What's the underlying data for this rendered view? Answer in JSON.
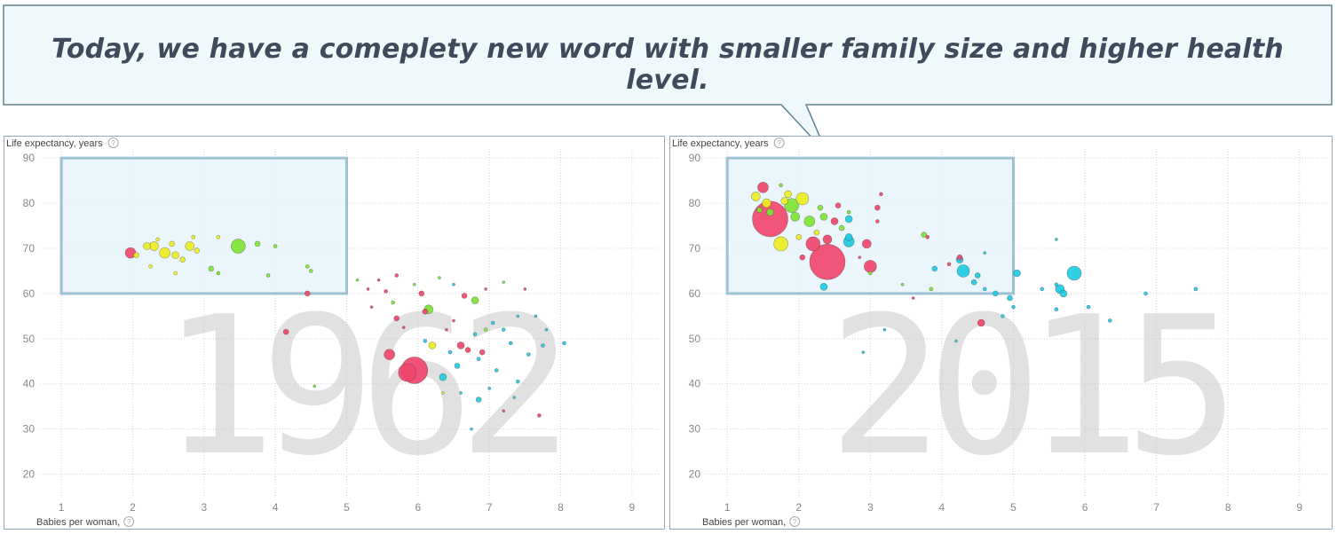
{
  "callout": {
    "text": "Today, we have a comeplety new word with smaller family size and higher health level."
  },
  "colors": {
    "south_asia_red": "#f0456a",
    "east_asia_yellow": "#eded1f",
    "europe_green": "#7ee334",
    "africa_cyan": "#1ecbe1",
    "highlight_fill": "#e6f4fa",
    "highlight_stroke": "#9cc2d4",
    "panel_border": "#8fa9b8"
  },
  "chart_data": [
    {
      "type": "scatter",
      "year_label": "1962",
      "ylabel": "Life expectancy, years",
      "xlabel": "Babies per woman,",
      "xlim": [
        0.7,
        9.4
      ],
      "ylim": [
        15,
        92
      ],
      "xticks": [
        "1",
        "2",
        "3",
        "4",
        "5",
        "6",
        "7",
        "8",
        "9"
      ],
      "yticks": [
        "20",
        "30",
        "40",
        "50",
        "60",
        "70",
        "80",
        "90"
      ],
      "highlight_box": {
        "x": [
          1,
          5
        ],
        "y": [
          60,
          90
        ]
      },
      "points": [
        {
          "x": 5.95,
          "y": 43,
          "r": 15,
          "c": "r"
        },
        {
          "x": 5.85,
          "y": 42.5,
          "r": 10,
          "c": "r"
        },
        {
          "x": 1.97,
          "y": 69,
          "r": 6,
          "c": "r"
        },
        {
          "x": 3.48,
          "y": 70.5,
          "r": 8,
          "c": "g"
        },
        {
          "x": 2.45,
          "y": 69,
          "r": 6,
          "c": "y"
        },
        {
          "x": 2.3,
          "y": 70.5,
          "r": 5,
          "c": "y"
        },
        {
          "x": 2.2,
          "y": 70.5,
          "r": 4,
          "c": "y"
        },
        {
          "x": 2.6,
          "y": 68.5,
          "r": 4,
          "c": "y"
        },
        {
          "x": 2.8,
          "y": 70.5,
          "r": 5,
          "c": "y"
        },
        {
          "x": 2.7,
          "y": 67.5,
          "r": 3,
          "c": "y"
        },
        {
          "x": 2.9,
          "y": 69.5,
          "r": 3,
          "c": "y"
        },
        {
          "x": 2.05,
          "y": 68.5,
          "r": 3,
          "c": "y"
        },
        {
          "x": 2.55,
          "y": 71,
          "r": 3,
          "c": "y"
        },
        {
          "x": 2.35,
          "y": 72,
          "r": 2,
          "c": "y"
        },
        {
          "x": 2.85,
          "y": 72.5,
          "r": 2,
          "c": "y"
        },
        {
          "x": 3.2,
          "y": 72.5,
          "r": 2,
          "c": "y"
        },
        {
          "x": 2.25,
          "y": 66,
          "r": 2,
          "c": "y"
        },
        {
          "x": 2.6,
          "y": 64.5,
          "r": 2,
          "c": "y"
        },
        {
          "x": 3.1,
          "y": 65.5,
          "r": 3,
          "c": "g"
        },
        {
          "x": 3.2,
          "y": 64.5,
          "r": 2,
          "c": "g"
        },
        {
          "x": 3.75,
          "y": 71,
          "r": 3,
          "c": "g"
        },
        {
          "x": 4.0,
          "y": 70.5,
          "r": 2,
          "c": "g"
        },
        {
          "x": 4.45,
          "y": 66,
          "r": 2,
          "c": "g"
        },
        {
          "x": 4.5,
          "y": 65,
          "r": 2,
          "c": "g"
        },
        {
          "x": 3.9,
          "y": 64,
          "r": 2,
          "c": "g"
        },
        {
          "x": 4.45,
          "y": 60,
          "r": 3,
          "c": "r"
        },
        {
          "x": 4.15,
          "y": 51.5,
          "r": 3,
          "c": "r"
        },
        {
          "x": 4.55,
          "y": 39.5,
          "r": 1.5,
          "c": "g"
        },
        {
          "x": 5.6,
          "y": 46.5,
          "r": 6,
          "c": "r"
        },
        {
          "x": 5.7,
          "y": 54.5,
          "r": 3,
          "c": "r"
        },
        {
          "x": 6.15,
          "y": 56.5,
          "r": 5,
          "c": "g"
        },
        {
          "x": 6.1,
          "y": 56,
          "r": 3,
          "c": "r"
        },
        {
          "x": 6.8,
          "y": 58.5,
          "r": 4,
          "c": "g"
        },
        {
          "x": 6.05,
          "y": 60,
          "r": 3,
          "c": "r"
        },
        {
          "x": 6.65,
          "y": 59.5,
          "r": 3,
          "c": "r"
        },
        {
          "x": 6.2,
          "y": 48.5,
          "r": 4,
          "c": "y"
        },
        {
          "x": 6.1,
          "y": 49.5,
          "r": 2,
          "c": "c"
        },
        {
          "x": 6.35,
          "y": 41.5,
          "r": 4,
          "c": "c"
        },
        {
          "x": 6.6,
          "y": 48.5,
          "r": 4,
          "c": "r"
        },
        {
          "x": 6.7,
          "y": 47.5,
          "r": 3,
          "c": "r"
        },
        {
          "x": 6.9,
          "y": 47,
          "r": 3,
          "c": "r"
        },
        {
          "x": 6.85,
          "y": 36.5,
          "r": 3,
          "c": "c"
        },
        {
          "x": 6.55,
          "y": 44,
          "r": 3,
          "c": "c"
        },
        {
          "x": 7.1,
          "y": 43,
          "r": 2,
          "c": "c"
        },
        {
          "x": 7.3,
          "y": 49,
          "r": 2,
          "c": "c"
        },
        {
          "x": 7.55,
          "y": 46.5,
          "r": 2,
          "c": "c"
        },
        {
          "x": 7.75,
          "y": 48.5,
          "r": 2,
          "c": "c"
        },
        {
          "x": 8.05,
          "y": 49,
          "r": 2,
          "c": "c"
        },
        {
          "x": 7.7,
          "y": 33,
          "r": 2,
          "c": "r"
        },
        {
          "x": 6.75,
          "y": 30,
          "r": 1.5,
          "c": "c"
        },
        {
          "x": 5.15,
          "y": 63,
          "r": 1.5,
          "c": "g"
        },
        {
          "x": 5.3,
          "y": 61,
          "r": 1.5,
          "c": "r"
        },
        {
          "x": 5.55,
          "y": 60.5,
          "r": 2,
          "c": "r"
        },
        {
          "x": 5.45,
          "y": 63,
          "r": 1.5,
          "c": "r"
        },
        {
          "x": 5.7,
          "y": 64,
          "r": 2,
          "c": "r"
        },
        {
          "x": 5.95,
          "y": 62,
          "r": 1.5,
          "c": "g"
        },
        {
          "x": 6.3,
          "y": 63.5,
          "r": 1.5,
          "c": "g"
        },
        {
          "x": 6.5,
          "y": 62,
          "r": 1.5,
          "c": "c"
        },
        {
          "x": 6.95,
          "y": 61,
          "r": 1.5,
          "c": "r"
        },
        {
          "x": 7.2,
          "y": 62.5,
          "r": 1.5,
          "c": "g"
        },
        {
          "x": 7.5,
          "y": 61,
          "r": 1.5,
          "c": "r"
        },
        {
          "x": 7.4,
          "y": 55,
          "r": 1.5,
          "c": "c"
        },
        {
          "x": 7.05,
          "y": 53.5,
          "r": 2,
          "c": "c"
        },
        {
          "x": 6.95,
          "y": 52,
          "r": 2,
          "c": "g"
        },
        {
          "x": 7.2,
          "y": 52,
          "r": 2,
          "c": "c"
        },
        {
          "x": 6.8,
          "y": 51,
          "r": 2,
          "c": "c"
        },
        {
          "x": 6.4,
          "y": 52,
          "r": 1.5,
          "c": "r"
        },
        {
          "x": 7.65,
          "y": 55,
          "r": 1.5,
          "c": "c"
        },
        {
          "x": 7.8,
          "y": 52,
          "r": 1.5,
          "c": "c"
        },
        {
          "x": 5.8,
          "y": 52.5,
          "r": 1.5,
          "c": "r"
        },
        {
          "x": 5.35,
          "y": 57,
          "r": 1.5,
          "c": "r"
        },
        {
          "x": 5.65,
          "y": 58,
          "r": 2,
          "c": "g"
        },
        {
          "x": 6.5,
          "y": 54,
          "r": 1.5,
          "c": "r"
        },
        {
          "x": 6.85,
          "y": 45.5,
          "r": 2,
          "c": "c"
        },
        {
          "x": 6.45,
          "y": 47,
          "r": 2,
          "c": "c"
        },
        {
          "x": 7.4,
          "y": 40.5,
          "r": 2,
          "c": "c"
        },
        {
          "x": 7.35,
          "y": 37,
          "r": 1.5,
          "c": "c"
        },
        {
          "x": 6.6,
          "y": 38,
          "r": 1.5,
          "c": "c"
        },
        {
          "x": 7.0,
          "y": 39,
          "r": 1.5,
          "c": "c"
        },
        {
          "x": 7.2,
          "y": 34,
          "r": 1.5,
          "c": "r"
        },
        {
          "x": 6.35,
          "y": 38,
          "r": 1.5,
          "c": "y"
        }
      ]
    },
    {
      "type": "scatter",
      "year_label": "2015",
      "ylabel": "Life expectancy, years",
      "xlabel": "Babies per woman,",
      "xlim": [
        0.7,
        9.4
      ],
      "ylim": [
        15,
        92
      ],
      "xticks": [
        "1",
        "2",
        "3",
        "4",
        "5",
        "6",
        "7",
        "8",
        "9"
      ],
      "yticks": [
        "20",
        "30",
        "40",
        "50",
        "60",
        "70",
        "80",
        "90"
      ],
      "highlight_box": {
        "x": [
          1,
          5
        ],
        "y": [
          60,
          90
        ]
      },
      "points": [
        {
          "x": 1.6,
          "y": 76.5,
          "r": 20,
          "c": "r"
        },
        {
          "x": 2.4,
          "y": 67,
          "r": 20,
          "c": "r"
        },
        {
          "x": 1.5,
          "y": 83.5,
          "r": 6,
          "c": "r"
        },
        {
          "x": 1.75,
          "y": 71,
          "r": 8,
          "c": "y"
        },
        {
          "x": 1.9,
          "y": 79.5,
          "r": 8,
          "c": "g"
        },
        {
          "x": 2.05,
          "y": 81,
          "r": 7,
          "c": "y"
        },
        {
          "x": 1.4,
          "y": 81.5,
          "r": 5,
          "c": "y"
        },
        {
          "x": 1.55,
          "y": 80,
          "r": 5,
          "c": "y"
        },
        {
          "x": 1.85,
          "y": 82,
          "r": 4,
          "c": "y"
        },
        {
          "x": 1.95,
          "y": 77,
          "r": 5,
          "c": "g"
        },
        {
          "x": 2.15,
          "y": 76,
          "r": 6,
          "c": "g"
        },
        {
          "x": 2.35,
          "y": 77,
          "r": 4,
          "c": "g"
        },
        {
          "x": 2.6,
          "y": 74.5,
          "r": 3,
          "c": "g"
        },
        {
          "x": 2.5,
          "y": 76,
          "r": 4,
          "c": "r"
        },
        {
          "x": 2.2,
          "y": 71,
          "r": 8,
          "c": "r"
        },
        {
          "x": 2.4,
          "y": 72,
          "r": 5,
          "c": "r"
        },
        {
          "x": 2.7,
          "y": 72.5,
          "r": 4,
          "c": "c"
        },
        {
          "x": 2.7,
          "y": 76.5,
          "r": 4,
          "c": "c"
        },
        {
          "x": 2.95,
          "y": 71,
          "r": 5,
          "c": "r"
        },
        {
          "x": 3.0,
          "y": 66,
          "r": 7,
          "c": "r"
        },
        {
          "x": 2.7,
          "y": 71.5,
          "r": 6,
          "c": "c"
        },
        {
          "x": 2.35,
          "y": 61.5,
          "r": 4,
          "c": "c"
        },
        {
          "x": 2.05,
          "y": 68,
          "r": 3,
          "c": "r"
        },
        {
          "x": 1.75,
          "y": 84,
          "r": 2,
          "c": "g"
        },
        {
          "x": 2.3,
          "y": 79,
          "r": 3,
          "c": "g"
        },
        {
          "x": 2.55,
          "y": 79.5,
          "r": 3,
          "c": "r"
        },
        {
          "x": 2.7,
          "y": 78,
          "r": 2,
          "c": "g"
        },
        {
          "x": 3.1,
          "y": 79,
          "r": 3,
          "c": "r"
        },
        {
          "x": 3.1,
          "y": 76,
          "r": 2,
          "c": "r"
        },
        {
          "x": 3.15,
          "y": 82,
          "r": 2,
          "c": "r"
        },
        {
          "x": 3.75,
          "y": 73,
          "r": 3,
          "c": "g"
        },
        {
          "x": 3.8,
          "y": 72.5,
          "r": 2,
          "c": "r"
        },
        {
          "x": 4.25,
          "y": 68,
          "r": 3,
          "c": "r"
        },
        {
          "x": 4.1,
          "y": 66.5,
          "r": 2,
          "c": "r"
        },
        {
          "x": 4.3,
          "y": 65,
          "r": 7,
          "c": "c"
        },
        {
          "x": 4.25,
          "y": 67.5,
          "r": 4,
          "c": "c"
        },
        {
          "x": 3.9,
          "y": 65.5,
          "r": 3,
          "c": "c"
        },
        {
          "x": 4.5,
          "y": 64,
          "r": 3,
          "c": "c"
        },
        {
          "x": 4.45,
          "y": 62.5,
          "r": 3,
          "c": "c"
        },
        {
          "x": 4.6,
          "y": 61,
          "r": 2,
          "c": "c"
        },
        {
          "x": 4.75,
          "y": 60,
          "r": 3,
          "c": "c"
        },
        {
          "x": 4.95,
          "y": 59,
          "r": 3,
          "c": "c"
        },
        {
          "x": 5.05,
          "y": 64.5,
          "r": 4,
          "c": "c"
        },
        {
          "x": 5.4,
          "y": 61,
          "r": 2,
          "c": "c"
        },
        {
          "x": 5.6,
          "y": 62,
          "r": 2,
          "c": "c"
        },
        {
          "x": 5.65,
          "y": 61,
          "r": 5,
          "c": "c"
        },
        {
          "x": 5.7,
          "y": 60,
          "r": 4,
          "c": "c"
        },
        {
          "x": 5.85,
          "y": 64.5,
          "r": 8,
          "c": "c"
        },
        {
          "x": 5.6,
          "y": 56.5,
          "r": 2,
          "c": "c"
        },
        {
          "x": 6.05,
          "y": 57,
          "r": 2,
          "c": "c"
        },
        {
          "x": 6.35,
          "y": 54,
          "r": 2,
          "c": "c"
        },
        {
          "x": 6.85,
          "y": 60,
          "r": 2,
          "c": "c"
        },
        {
          "x": 7.55,
          "y": 61,
          "r": 2,
          "c": "c"
        },
        {
          "x": 5.6,
          "y": 72,
          "r": 1.5,
          "c": "c"
        },
        {
          "x": 4.55,
          "y": 53.5,
          "r": 4,
          "c": "r"
        },
        {
          "x": 4.2,
          "y": 49.5,
          "r": 1.5,
          "c": "c"
        },
        {
          "x": 4.85,
          "y": 55,
          "r": 2,
          "c": "c"
        },
        {
          "x": 5.0,
          "y": 57,
          "r": 2,
          "c": "c"
        },
        {
          "x": 3.45,
          "y": 62,
          "r": 1.5,
          "c": "g"
        },
        {
          "x": 3.6,
          "y": 59,
          "r": 1.5,
          "c": "r"
        },
        {
          "x": 3.85,
          "y": 61,
          "r": 2,
          "c": "g"
        },
        {
          "x": 3.0,
          "y": 64.5,
          "r": 2,
          "c": "g"
        },
        {
          "x": 2.85,
          "y": 68,
          "r": 1.5,
          "c": "r"
        },
        {
          "x": 3.2,
          "y": 52,
          "r": 1.5,
          "c": "c"
        },
        {
          "x": 2.9,
          "y": 47,
          "r": 1.5,
          "c": "c"
        },
        {
          "x": 4.6,
          "y": 69,
          "r": 1.5,
          "c": "c"
        },
        {
          "x": 2.25,
          "y": 73.5,
          "r": 3,
          "c": "y"
        },
        {
          "x": 1.6,
          "y": 78,
          "r": 4,
          "c": "g"
        },
        {
          "x": 1.8,
          "y": 80.5,
          "r": 4,
          "c": "y"
        },
        {
          "x": 1.45,
          "y": 78.5,
          "r": 3,
          "c": "g"
        },
        {
          "x": 2.0,
          "y": 72.5,
          "r": 3,
          "c": "y"
        }
      ]
    }
  ]
}
